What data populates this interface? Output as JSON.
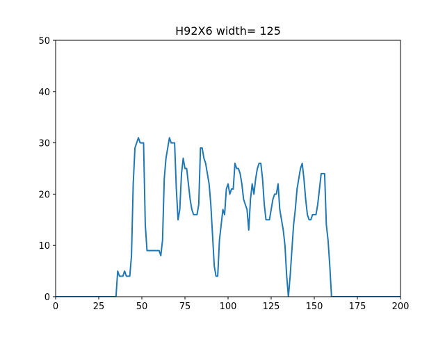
{
  "chart_data": {
    "type": "line",
    "title": "H92X6 width= 125",
    "xlabel": "",
    "ylabel": "",
    "xlim": [
      0,
      200
    ],
    "ylim": [
      0,
      50
    ],
    "xticks": [
      0,
      25,
      50,
      75,
      100,
      125,
      150,
      175,
      200
    ],
    "yticks": [
      0,
      10,
      20,
      30,
      40,
      50
    ],
    "grid": false,
    "line_color": "#1f77b4",
    "series": [
      {
        "x": [
          0,
          35,
          36,
          37,
          38,
          39,
          40,
          41,
          42,
          43,
          44,
          45,
          46,
          47,
          48,
          49,
          50,
          51,
          52,
          53,
          54,
          55,
          56,
          57,
          58,
          59,
          60,
          61,
          62,
          63,
          64,
          65,
          66,
          67,
          68,
          69,
          70,
          71,
          72,
          73,
          74,
          75,
          76,
          77,
          78,
          79,
          80,
          81,
          82,
          83,
          84,
          85,
          86,
          87,
          88,
          89,
          90,
          91,
          92,
          93,
          94,
          95,
          96,
          97,
          98,
          99,
          100,
          101,
          102,
          103,
          104,
          105,
          106,
          107,
          108,
          109,
          110,
          111,
          112,
          113,
          114,
          115,
          116,
          117,
          118,
          119,
          120,
          121,
          122,
          123,
          124,
          125,
          126,
          127,
          128,
          129,
          130,
          131,
          132,
          133,
          134,
          135,
          136,
          137,
          138,
          139,
          140,
          141,
          142,
          143,
          144,
          145,
          146,
          147,
          148,
          149,
          150,
          151,
          152,
          153,
          154,
          155,
          156,
          157,
          158,
          159,
          160,
          200
        ],
        "values": [
          0,
          0,
          5,
          4,
          4,
          4,
          5,
          4,
          4,
          4,
          8,
          22,
          29,
          30,
          31,
          30,
          30,
          30,
          14,
          9,
          9,
          9,
          9,
          9,
          9,
          9,
          9,
          8,
          11,
          23,
          27,
          29,
          31,
          30,
          30,
          30,
          21,
          15,
          17,
          24,
          27,
          25,
          25,
          22,
          19,
          17,
          16,
          16,
          16,
          18,
          29,
          29,
          27,
          26,
          24,
          22,
          18,
          12,
          6,
          4,
          4,
          11,
          14,
          17,
          16,
          21,
          22,
          20,
          21,
          21,
          26,
          25,
          25,
          24,
          22,
          19,
          18,
          17,
          13,
          19,
          22,
          20,
          23,
          25,
          26,
          26,
          23,
          18,
          15,
          15,
          15,
          17,
          19,
          20,
          20,
          22,
          17,
          15,
          13,
          10,
          4,
          0,
          4,
          9,
          14,
          17,
          21,
          23,
          25,
          26,
          23,
          19,
          16,
          15,
          15,
          16,
          16,
          16,
          18,
          21,
          24,
          24,
          24,
          14,
          11,
          6,
          0,
          0
        ]
      }
    ]
  }
}
